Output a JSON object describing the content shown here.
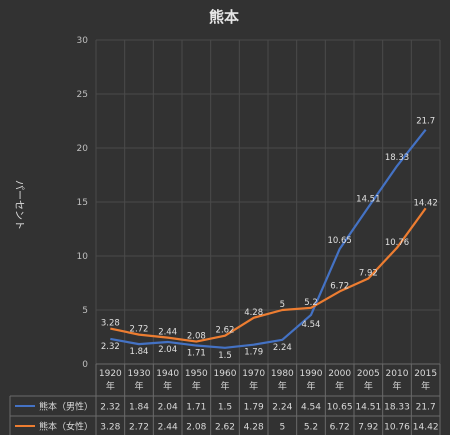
{
  "chart_data": {
    "type": "line",
    "title": "熊本",
    "ylabel": "パーセント",
    "xlabel": "",
    "ylim": [
      0,
      30
    ],
    "yticks": [
      0,
      5,
      10,
      15,
      20,
      25,
      30
    ],
    "grid": true,
    "legend": "data-table",
    "categories": [
      [
        "1920",
        "年"
      ],
      [
        "1930",
        "年"
      ],
      [
        "1940",
        "年"
      ],
      [
        "1950",
        "年"
      ],
      [
        "1960",
        "年"
      ],
      [
        "1970",
        "年"
      ],
      [
        "1980",
        "年"
      ],
      [
        "1990",
        "年"
      ],
      [
        "2000",
        "年"
      ],
      [
        "2005",
        "年"
      ],
      [
        "2010",
        "年"
      ],
      [
        "2015",
        "年"
      ]
    ],
    "series": [
      {
        "name": "熊本（男性）",
        "color": "#4472c4",
        "values": [
          2.32,
          1.84,
          2.04,
          1.71,
          1.5,
          1.79,
          2.24,
          4.54,
          10.65,
          14.51,
          18.33,
          21.7
        ]
      },
      {
        "name": "熊本（女性）",
        "color": "#ed7d31",
        "values": [
          3.28,
          2.72,
          2.44,
          2.08,
          2.62,
          4.28,
          5,
          5.2,
          6.72,
          7.92,
          10.76,
          14.42
        ]
      }
    ]
  }
}
